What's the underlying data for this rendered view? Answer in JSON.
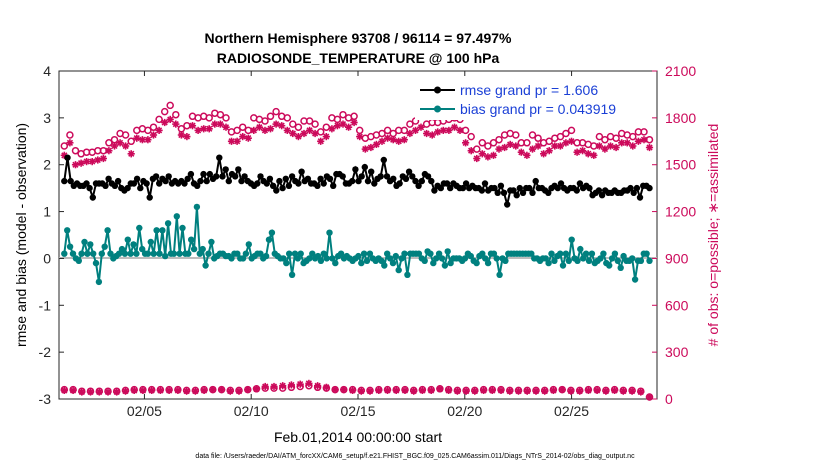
{
  "figure": {
    "title_line1": "Northern Hemisphere 93708 / 96114 = 97.497%",
    "title_line2": "RADIOSONDE_TEMPERATURE @ 100 hPa",
    "xlabel": "Feb.01,2014 00:00:00 start",
    "ylabel_left": "rmse and bias (model - observation)",
    "ylabel_right": "# of obs: o=possible; ∗=assimilated",
    "footer": "data file: /Users/raeder/DAI/ATM_forcXX/CAM6_setup/f.e21.FHIST_BGC.f09_025.CAM6assim.011/Diags_NTrS_2014-02/obs_diag_output.nc",
    "legend": {
      "rmse": "rmse grand pr = 1.606",
      "bias": "bias grand pr = 0.043919"
    },
    "colors": {
      "rmse": "#000000",
      "bias": "#00807f",
      "counts": "#cc0a5b",
      "zero_line": "#bdbdbd",
      "legend_text": "#1a3fd6"
    }
  },
  "chart_data": {
    "type": "line",
    "x_unit": "day of February 2014",
    "xlim": [
      1,
      29
    ],
    "ylim_left": [
      -3,
      4
    ],
    "ylim_right": [
      0,
      2100
    ],
    "x_tick_labels": [
      "02/05",
      "02/10",
      "02/15",
      "02/20",
      "02/25"
    ],
    "x_tick_values": [
      5,
      10,
      15,
      20,
      25
    ],
    "y_left_ticks": [
      "-3",
      "-2",
      "-1",
      "0",
      "1",
      "2",
      "3",
      "4"
    ],
    "y_right_ticks": [
      "0",
      "300",
      "600",
      "900",
      "1200",
      "1500",
      "1800",
      "2100"
    ],
    "x_start": 1.25,
    "x_step": 0.25,
    "series": [
      {
        "name": "rmse grand pr = 1.606",
        "axis": "left",
        "values": [
          1.65,
          2.15,
          1.65,
          1.55,
          1.6,
          1.55,
          1.55,
          1.6,
          1.5,
          1.3,
          1.6,
          1.6,
          1.6,
          1.55,
          1.7,
          1.6,
          1.55,
          1.65,
          1.5,
          1.45,
          1.5,
          1.6,
          1.6,
          1.7,
          1.5,
          1.65,
          1.6,
          1.3,
          1.7,
          1.75,
          1.6,
          1.7,
          1.65,
          1.75,
          1.6,
          1.65,
          1.6,
          1.65,
          1.6,
          1.7,
          1.8,
          1.6,
          1.55,
          1.65,
          1.8,
          1.65,
          1.8,
          1.7,
          1.75,
          2.15,
          1.75,
          1.9,
          1.65,
          1.8,
          1.75,
          1.9,
          1.65,
          1.75,
          1.65,
          1.6,
          1.55,
          1.6,
          1.75,
          1.65,
          1.6,
          1.7,
          1.55,
          1.45,
          1.65,
          1.5,
          1.7,
          1.55,
          1.75,
          1.65,
          1.6,
          1.85,
          1.65,
          1.7,
          1.6,
          1.6,
          1.55,
          1.7,
          1.6,
          1.75,
          1.7,
          1.55,
          1.8,
          1.8,
          1.75,
          1.6,
          1.6,
          1.65,
          1.9,
          1.65,
          1.75,
          1.95,
          1.65,
          1.85,
          1.6,
          1.7,
          1.75,
          2.1,
          1.75,
          1.65,
          1.7,
          1.55,
          1.6,
          1.75,
          1.7,
          1.85,
          1.75,
          1.65,
          1.55,
          1.65,
          1.8,
          1.75,
          1.65,
          1.45,
          1.55,
          1.5,
          1.6,
          1.6,
          1.5,
          1.6,
          1.55,
          1.5,
          1.5,
          1.6,
          1.5,
          1.55,
          1.5,
          1.5,
          1.45,
          1.6,
          1.45,
          1.5,
          1.5,
          1.4,
          1.55,
          1.4,
          1.15,
          1.45,
          1.45,
          1.35,
          1.5,
          1.4,
          1.5,
          1.5,
          1.4,
          1.65,
          1.5,
          1.5,
          1.45,
          1.4,
          1.5,
          1.55,
          1.5,
          1.6,
          1.5,
          1.45,
          1.5,
          1.5,
          1.45,
          1.6,
          1.5,
          1.55,
          1.5,
          1.35,
          1.4,
          1.45,
          1.35,
          1.45,
          1.4,
          1.4,
          1.45,
          1.4,
          1.4,
          1.45,
          1.45,
          1.5,
          1.4,
          1.5,
          1.3,
          1.55,
          1.55,
          1.5
        ],
        "marker": "filled-circle"
      },
      {
        "name": "bias grand pr = 0.043919",
        "axis": "left",
        "values": [
          0.1,
          0.6,
          0.25,
          0.1,
          0.0,
          -0.05,
          0.1,
          0.35,
          0.1,
          0.3,
          0.1,
          -0.1,
          -0.5,
          0.1,
          0.25,
          0.6,
          0.1,
          0.0,
          0.05,
          0.1,
          0.2,
          0.1,
          0.4,
          0.1,
          0.3,
          0.1,
          0.65,
          0.2,
          0.1,
          0.1,
          0.35,
          0.1,
          0.6,
          0.1,
          0.6,
          0.05,
          0.75,
          0.1,
          0.1,
          0.9,
          0.1,
          0.65,
          0.1,
          0.1,
          0.4,
          0.2,
          1.1,
          0.1,
          0.2,
          -0.15,
          0.1,
          0.35,
          0.0,
          0.05,
          0.1,
          0.1,
          0.05,
          0.05,
          0.0,
          0.1,
          0.1,
          0.0,
          0.0,
          0.1,
          0.3,
          0.0,
          0.05,
          0.1,
          0.1,
          0.0,
          0.05,
          0.4,
          0.55,
          0.1,
          0.05,
          0.0,
          0.0,
          -0.1,
          0.1,
          -0.35,
          0.1,
          0.0,
          0.1,
          -0.1,
          -0.05,
          0.0,
          0.1,
          0.0,
          0.05,
          -0.05,
          0.1,
          0.0,
          0.55,
          0.0,
          -0.1,
          0.05,
          0.1,
          0.0,
          0.05,
          0.0,
          -0.05,
          0.0,
          0.05,
          -0.1,
          0.1,
          -0.05,
          0.1,
          0.0,
          -0.05,
          0.0,
          -0.05,
          -0.15,
          0.1,
          0.0,
          -0.1,
          0.05,
          -0.25,
          0.0,
          0.1,
          -0.35,
          0.1,
          0.1,
          0.1,
          0.1,
          0.0,
          -0.05,
          0.15,
          0.1,
          -0.1,
          0.0,
          0.1,
          0.0,
          -0.15,
          0.15,
          -0.1,
          0.0,
          0.0,
          0.0,
          -0.05,
          0.0,
          0.1,
          0.05,
          -0.05,
          -0.1,
          0.05,
          0.1,
          0.0,
          -0.1,
          0.1,
          0.1,
          0.0,
          -0.35,
          0.0,
          -0.05,
          0.1,
          0.1,
          0.1,
          0.1,
          0.1,
          0.1,
          0.1,
          0.1,
          0.1,
          0.0,
          0.0,
          -0.05,
          0.0,
          0.0,
          -0.1,
          0.1,
          -0.05,
          0.05,
          0.1,
          -0.15,
          0.1,
          -0.05,
          0.4,
          0.0,
          -0.05,
          0.2,
          0.0,
          0.1,
          -0.05,
          0.1,
          -0.1,
          -0.05,
          0.0,
          0.1,
          -0.1,
          -0.15,
          0.0,
          0.1,
          -0.05,
          -0.2,
          0.05,
          -0.05,
          -0.05,
          0.0,
          -0.45,
          -0.05,
          -0.05,
          0.1,
          0.1,
          -0.05
        ],
        "marker": "filled-circle"
      },
      {
        "name": "possible",
        "axis": "right",
        "values": [
          1620,
          1690,
          1590,
          1570,
          1580,
          1580,
          1590,
          1590,
          1640,
          1660,
          1700,
          1690,
          1650,
          1720,
          1730,
          1720,
          1740,
          1790,
          1840,
          1880,
          1820,
          1730,
          1750,
          1810,
          1800,
          1810,
          1800,
          1830,
          1820,
          1800,
          1710,
          1720,
          1740,
          1720,
          1800,
          1790,
          1780,
          1810,
          1840,
          1810,
          1800,
          1760,
          1740,
          1780,
          1780,
          1760,
          1710,
          1740,
          1800,
          1790,
          1820,
          1800,
          1810,
          1720,
          1670,
          1680,
          1690,
          1700,
          1720,
          1700,
          1720,
          1720,
          1760,
          1780,
          1820,
          1760,
          1770,
          1770,
          1780,
          1790,
          1800,
          1790,
          1720,
          1680,
          1600,
          1640,
          1620,
          1640,
          1660,
          1690,
          1700,
          1690,
          1640,
          1640,
          1690,
          1670,
          1640,
          1650,
          1670,
          1680,
          1700,
          1720,
          1640,
          1640,
          1630,
          1620,
          1680,
          1660,
          1680,
          1670,
          1700,
          1690,
          1680,
          1710,
          1710,
          1660
        ],
        "marker": "open-circle"
      },
      {
        "name": "assimilated",
        "axis": "right",
        "values": [
          1560,
          1640,
          1500,
          1510,
          1520,
          1520,
          1530,
          1540,
          1590,
          1620,
          1640,
          1620,
          1570,
          1670,
          1660,
          1660,
          1690,
          1720,
          1770,
          1790,
          1760,
          1690,
          1680,
          1750,
          1720,
          1730,
          1730,
          1760,
          1760,
          1740,
          1650,
          1650,
          1680,
          1670,
          1720,
          1740,
          1720,
          1730,
          1760,
          1750,
          1720,
          1700,
          1680,
          1700,
          1720,
          1700,
          1650,
          1680,
          1730,
          1750,
          1760,
          1740,
          1770,
          1680,
          1600,
          1610,
          1630,
          1650,
          1670,
          1660,
          1650,
          1660,
          1700,
          1720,
          1740,
          1700,
          1690,
          1710,
          1720,
          1720,
          1740,
          1720,
          1640,
          1590,
          1540,
          1570,
          1550,
          1560,
          1600,
          1610,
          1630,
          1620,
          1580,
          1560,
          1600,
          1620,
          1570,
          1590,
          1620,
          1620,
          1640,
          1650,
          1580,
          1590,
          1570,
          1560,
          1620,
          1600,
          1620,
          1610,
          1640,
          1640,
          1620,
          1650,
          1660,
          1610
        ],
        "marker": "asterisk"
      },
      {
        "name": "possible (bottom)",
        "axis": "right",
        "values": [
          60,
          60,
          50,
          50,
          50,
          50,
          50,
          55,
          60,
          60,
          60,
          60,
          60,
          60,
          55,
          55,
          60,
          60,
          60,
          55,
          55,
          60,
          65,
          70,
          70,
          70,
          75,
          80,
          85,
          75,
          70,
          60,
          60,
          60,
          55,
          55,
          60,
          60,
          60,
          60,
          55,
          60,
          60,
          65,
          60,
          55,
          55,
          55,
          60,
          60,
          60,
          55,
          55,
          55,
          55,
          55,
          60,
          60,
          55,
          55,
          60,
          60,
          55,
          60,
          55,
          55,
          50,
          0
        ],
        "marker": "open-circle"
      },
      {
        "name": "assimilated (bottom)",
        "axis": "right",
        "values": [
          55,
          55,
          45,
          45,
          45,
          45,
          45,
          50,
          55,
          55,
          55,
          55,
          55,
          55,
          50,
          50,
          55,
          60,
          60,
          50,
          50,
          60,
          65,
          80,
          80,
          85,
          90,
          95,
          100,
          85,
          75,
          60,
          60,
          55,
          50,
          50,
          55,
          55,
          55,
          55,
          50,
          55,
          55,
          65,
          55,
          50,
          50,
          50,
          55,
          55,
          55,
          50,
          50,
          50,
          50,
          50,
          55,
          60,
          50,
          50,
          55,
          55,
          50,
          55,
          50,
          50,
          45,
          0
        ],
        "marker": "asterisk"
      }
    ]
  }
}
